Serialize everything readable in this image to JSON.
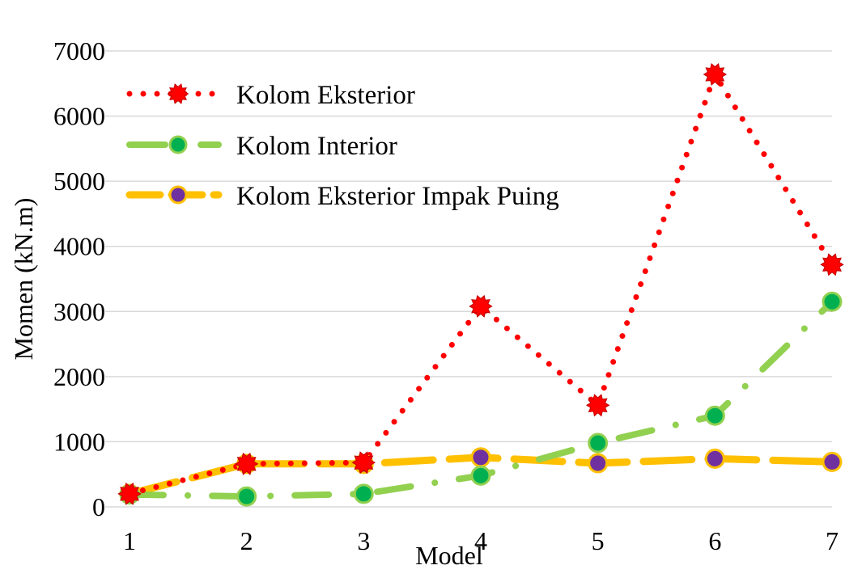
{
  "chart_data": {
    "type": "line",
    "title": "",
    "xlabel": "Model",
    "ylabel": "Momen (kN.m)",
    "categories": [
      "1",
      "2",
      "3",
      "4",
      "5",
      "6",
      "7"
    ],
    "ylim": [
      0,
      7000
    ],
    "yticks": [
      "0",
      "1000",
      "2000",
      "3000",
      "4000",
      "5000",
      "6000",
      "7000"
    ],
    "grid": true,
    "legend": "top-left",
    "series": [
      {
        "name": "Kolom Eksterior",
        "values": [
          200,
          660,
          680,
          3080,
          1560,
          6640,
          3720
        ],
        "color": "#ff0000",
        "marker_color": "#ff0000",
        "line_style": "dotted"
      },
      {
        "name": "Kolom Interior",
        "values": [
          190,
          160,
          200,
          480,
          980,
          1400,
          3150
        ],
        "color": "#92d050",
        "marker_color": "#00b050",
        "line_style": "dash-dot"
      },
      {
        "name": "Kolom Eksterior Impak Puing",
        "values": [
          200,
          660,
          660,
          760,
          670,
          740,
          690
        ],
        "color": "#ffc000",
        "marker_color": "#7030a0",
        "line_style": "long-dash"
      }
    ]
  }
}
